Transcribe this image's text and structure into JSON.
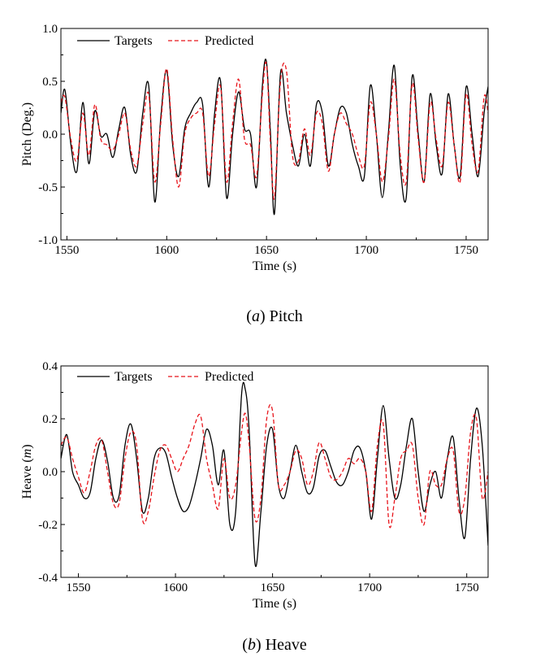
{
  "chart_data": [
    {
      "type": "line",
      "caption_label": "a",
      "caption_text": "Pitch",
      "xlabel": "Time (s)",
      "ylabel": "Pitch (Deg.)",
      "xlim": [
        1547,
        1761
      ],
      "ylim": [
        -1.0,
        1.0
      ],
      "xticks": [
        "1550",
        "1600",
        "1650",
        "1700",
        "1750"
      ],
      "xtick_values": [
        1550,
        1600,
        1650,
        1700,
        1750
      ],
      "yticks": [
        "-1.0",
        "-0.5",
        "0.0",
        "0.5",
        "1.0"
      ],
      "ytick_values": [
        -1.0,
        -0.5,
        0.0,
        0.5,
        1.0
      ],
      "legend_position": "top-left",
      "series": [
        {
          "name": "Targets",
          "color": "#000000",
          "style": "solid",
          "x": [
            1547,
            1549,
            1552,
            1555,
            1558,
            1561,
            1564,
            1567,
            1570,
            1573,
            1576,
            1579,
            1582,
            1585,
            1588,
            1591,
            1594,
            1597,
            1600,
            1603,
            1606,
            1609,
            1612,
            1615,
            1618,
            1621,
            1624,
            1627,
            1630,
            1633,
            1636,
            1639,
            1642,
            1645,
            1648,
            1650,
            1652,
            1654,
            1657,
            1660,
            1663,
            1666,
            1669,
            1672,
            1675,
            1678,
            1681,
            1684,
            1687,
            1690,
            1693,
            1696,
            1699,
            1702,
            1705,
            1708,
            1711,
            1714,
            1717,
            1720,
            1723,
            1726,
            1729,
            1732,
            1735,
            1738,
            1741,
            1744,
            1747,
            1750,
            1753,
            1756,
            1759,
            1761
          ],
          "y": [
            0.2,
            0.42,
            -0.1,
            -0.35,
            0.3,
            -0.28,
            0.22,
            -0.02,
            0.0,
            -0.22,
            0.05,
            0.25,
            -0.2,
            -0.35,
            0.2,
            0.46,
            -0.64,
            0.15,
            0.6,
            -0.1,
            -0.4,
            0.05,
            0.2,
            0.3,
            0.28,
            -0.5,
            0.2,
            0.5,
            -0.6,
            0.0,
            0.4,
            0.05,
            0.0,
            -0.5,
            0.48,
            0.68,
            0.0,
            -0.75,
            0.58,
            0.2,
            -0.1,
            -0.3,
            0.0,
            -0.3,
            0.28,
            0.2,
            -0.3,
            0.0,
            0.25,
            0.2,
            -0.1,
            -0.3,
            -0.4,
            0.46,
            0.0,
            -0.6,
            0.0,
            0.65,
            -0.3,
            -0.6,
            0.55,
            0.0,
            -0.45,
            0.38,
            -0.1,
            -0.37,
            0.38,
            -0.1,
            -0.4,
            0.45,
            0.0,
            -0.4,
            0.2,
            0.45
          ]
        },
        {
          "name": "Predicted",
          "color": "#e8141b",
          "style": "dashed",
          "x": [
            1547,
            1549,
            1552,
            1555,
            1558,
            1561,
            1564,
            1567,
            1570,
            1573,
            1576,
            1579,
            1582,
            1585,
            1588,
            1591,
            1594,
            1597,
            1600,
            1603,
            1606,
            1609,
            1612,
            1615,
            1618,
            1621,
            1624,
            1627,
            1630,
            1633,
            1636,
            1639,
            1642,
            1645,
            1648,
            1650,
            1652,
            1654,
            1657,
            1660,
            1663,
            1666,
            1669,
            1672,
            1675,
            1678,
            1681,
            1684,
            1687,
            1690,
            1693,
            1696,
            1699,
            1702,
            1705,
            1708,
            1711,
            1714,
            1717,
            1720,
            1723,
            1726,
            1729,
            1732,
            1735,
            1738,
            1741,
            1744,
            1747,
            1750,
            1753,
            1756,
            1759,
            1761
          ],
          "y": [
            0.3,
            0.35,
            -0.05,
            -0.25,
            0.2,
            -0.2,
            0.28,
            -0.05,
            -0.1,
            -0.15,
            0.0,
            0.2,
            -0.15,
            -0.3,
            0.1,
            0.38,
            -0.45,
            0.1,
            0.62,
            -0.05,
            -0.5,
            0.0,
            0.15,
            0.2,
            0.2,
            -0.4,
            0.1,
            0.45,
            -0.45,
            0.1,
            0.52,
            -0.05,
            -0.1,
            -0.4,
            0.4,
            0.66,
            -0.1,
            -0.6,
            0.5,
            0.6,
            -0.2,
            -0.25,
            0.05,
            -0.2,
            0.2,
            0.1,
            -0.35,
            0.0,
            0.2,
            0.1,
            0.0,
            -0.2,
            -0.3,
            0.3,
            0.0,
            -0.45,
            -0.05,
            0.52,
            -0.2,
            -0.45,
            0.48,
            -0.05,
            -0.45,
            0.3,
            -0.05,
            -0.3,
            0.3,
            -0.1,
            -0.45,
            0.38,
            -0.1,
            -0.35,
            0.35,
            0.2
          ]
        }
      ]
    },
    {
      "type": "line",
      "caption_label": "b",
      "caption_text": "Heave",
      "xlabel": "Time (s)",
      "ylabel_text": "Heave (",
      "ylabel_unit": "m",
      "ylabel_close": ")",
      "xlim": [
        1541,
        1761
      ],
      "ylim": [
        -0.4,
        0.4
      ],
      "xticks": [
        "1550",
        "1600",
        "1650",
        "1700",
        "1750"
      ],
      "xtick_values": [
        1550,
        1600,
        1650,
        1700,
        1750
      ],
      "yticks": [
        "-0.4",
        "-0.2",
        "0.0",
        "0.2",
        "0.4"
      ],
      "ytick_values": [
        -0.4,
        -0.2,
        0.0,
        0.2,
        0.4
      ],
      "legend_position": "top-left",
      "series": [
        {
          "name": "Targets",
          "color": "#000000",
          "style": "solid",
          "x": [
            1541,
            1544,
            1547,
            1550,
            1553,
            1556,
            1559,
            1562,
            1565,
            1568,
            1571,
            1574,
            1577,
            1580,
            1583,
            1586,
            1589,
            1592,
            1595,
            1598,
            1601,
            1604,
            1607,
            1610,
            1613,
            1616,
            1619,
            1622,
            1625,
            1628,
            1631,
            1634,
            1636,
            1638,
            1641,
            1644,
            1647,
            1650,
            1653,
            1656,
            1659,
            1662,
            1665,
            1668,
            1671,
            1674,
            1677,
            1680,
            1683,
            1686,
            1689,
            1692,
            1695,
            1698,
            1701,
            1704,
            1707,
            1710,
            1713,
            1716,
            1719,
            1722,
            1725,
            1728,
            1731,
            1734,
            1737,
            1740,
            1743,
            1746,
            1749,
            1752,
            1755,
            1758,
            1761
          ],
          "y": [
            0.05,
            0.14,
            0.0,
            -0.05,
            -0.1,
            -0.08,
            0.05,
            0.12,
            0.04,
            -0.1,
            -0.09,
            0.1,
            0.18,
            0.05,
            -0.15,
            -0.1,
            0.05,
            0.09,
            0.07,
            -0.02,
            -0.1,
            -0.15,
            -0.13,
            -0.05,
            0.05,
            0.16,
            0.1,
            -0.05,
            0.08,
            -0.2,
            -0.15,
            0.29,
            0.31,
            0.15,
            -0.35,
            -0.15,
            0.1,
            0.16,
            -0.05,
            -0.1,
            0.0,
            0.1,
            0.0,
            -0.08,
            -0.06,
            0.06,
            0.08,
            0.02,
            -0.04,
            -0.05,
            0.0,
            0.08,
            0.09,
            0.0,
            -0.18,
            0.05,
            0.25,
            0.05,
            -0.1,
            -0.05,
            0.1,
            0.2,
            0.0,
            -0.15,
            -0.05,
            0.0,
            -0.1,
            0.05,
            0.13,
            -0.1,
            -0.25,
            0.05,
            0.24,
            0.1,
            -0.28
          ]
        },
        {
          "name": "Predicted",
          "color": "#e8141b",
          "style": "dashed",
          "x": [
            1541,
            1544,
            1547,
            1550,
            1553,
            1556,
            1559,
            1562,
            1565,
            1568,
            1571,
            1574,
            1577,
            1580,
            1583,
            1586,
            1589,
            1592,
            1595,
            1598,
            1601,
            1604,
            1607,
            1610,
            1613,
            1616,
            1619,
            1622,
            1625,
            1628,
            1631,
            1634,
            1636,
            1638,
            1641,
            1644,
            1647,
            1650,
            1653,
            1656,
            1659,
            1662,
            1665,
            1668,
            1671,
            1674,
            1677,
            1680,
            1683,
            1686,
            1689,
            1692,
            1695,
            1698,
            1701,
            1704,
            1707,
            1710,
            1713,
            1716,
            1719,
            1722,
            1725,
            1728,
            1731,
            1734,
            1737,
            1740,
            1743,
            1746,
            1749,
            1752,
            1755,
            1758,
            1761
          ],
          "y": [
            0.1,
            0.13,
            0.05,
            -0.02,
            -0.08,
            0.0,
            0.1,
            0.12,
            0.0,
            -0.12,
            -0.12,
            0.05,
            0.15,
            0.1,
            -0.18,
            -0.15,
            -0.02,
            0.08,
            0.1,
            0.05,
            0.0,
            0.05,
            0.1,
            0.18,
            0.21,
            0.05,
            -0.05,
            -0.14,
            0.05,
            -0.1,
            -0.05,
            0.15,
            0.22,
            0.1,
            -0.18,
            -0.1,
            0.2,
            0.23,
            -0.05,
            -0.05,
            0.0,
            0.08,
            0.05,
            -0.05,
            0.0,
            0.11,
            0.05,
            -0.02,
            -0.03,
            0.0,
            0.05,
            0.03,
            0.05,
            0.0,
            -0.15,
            0.1,
            0.18,
            -0.2,
            -0.1,
            0.05,
            0.08,
            0.1,
            -0.1,
            -0.2,
            0.0,
            -0.05,
            -0.05,
            0.05,
            0.08,
            -0.15,
            -0.1,
            0.15,
            0.2,
            -0.1,
            0.0
          ]
        }
      ]
    }
  ]
}
